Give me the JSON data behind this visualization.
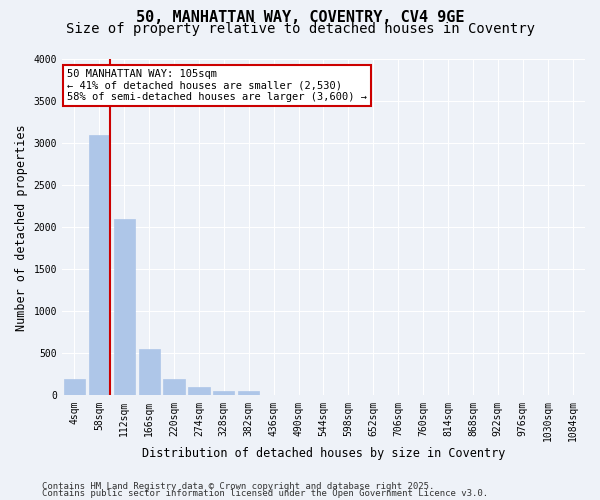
{
  "title_line1": "50, MANHATTAN WAY, COVENTRY, CV4 9GE",
  "title_line2": "Size of property relative to detached houses in Coventry",
  "xlabel": "Distribution of detached houses by size in Coventry",
  "ylabel": "Number of detached properties",
  "bin_labels": [
    "4sqm",
    "58sqm",
    "112sqm",
    "166sqm",
    "220sqm",
    "274sqm",
    "328sqm",
    "382sqm",
    "436sqm",
    "490sqm",
    "544sqm",
    "598sqm",
    "652sqm",
    "706sqm",
    "760sqm",
    "814sqm",
    "868sqm",
    "922sqm",
    "976sqm",
    "1030sqm",
    "1084sqm"
  ],
  "bar_values": [
    200,
    3100,
    2100,
    550,
    200,
    100,
    50,
    50,
    0,
    0,
    0,
    0,
    0,
    0,
    0,
    0,
    0,
    0,
    0,
    0,
    0
  ],
  "bar_color": "#aec6e8",
  "bar_edgecolor": "#aec6e8",
  "vline_x_index": 1,
  "vline_color": "#cc0000",
  "ylim": [
    0,
    4000
  ],
  "yticks": [
    0,
    500,
    1000,
    1500,
    2000,
    2500,
    3000,
    3500,
    4000
  ],
  "annotation_text": "50 MANHATTAN WAY: 105sqm\n← 41% of detached houses are smaller (2,530)\n58% of semi-detached houses are larger (3,600) →",
  "annotation_box_color": "#ffffff",
  "annotation_box_edgecolor": "#cc0000",
  "footnote1": "Contains HM Land Registry data © Crown copyright and database right 2025.",
  "footnote2": "Contains public sector information licensed under the Open Government Licence v3.0.",
  "background_color": "#eef2f8",
  "plot_background": "#eef2f8",
  "grid_color": "#ffffff",
  "title_fontsize": 11,
  "subtitle_fontsize": 10,
  "axis_label_fontsize": 8.5,
  "tick_fontsize": 7,
  "footnote_fontsize": 6.5
}
